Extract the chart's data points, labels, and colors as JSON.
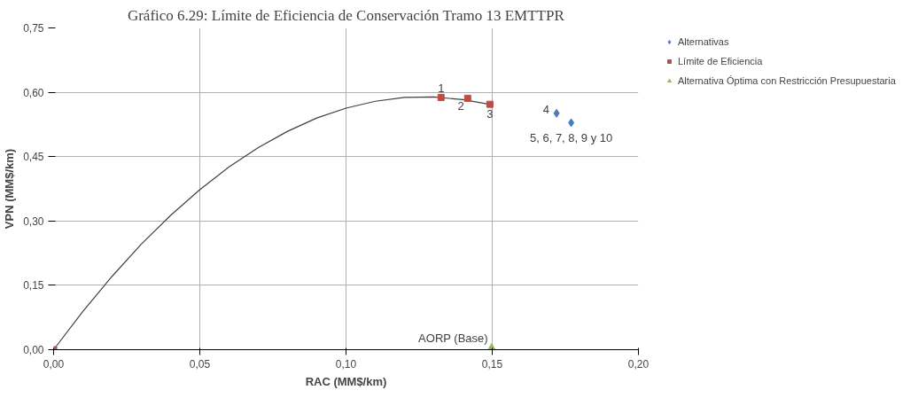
{
  "chart_data": {
    "type": "scatter",
    "title": "Gráfico 6.29: Límite de Eficiencia de Conservación Tramo 13 EMTTPR",
    "xlabel": "RAC (MM$/km)",
    "ylabel": "VPN (MM$/km)",
    "xlim": [
      0,
      0.2
    ],
    "ylim": [
      0,
      0.75
    ],
    "xticks": [
      {
        "value": 0,
        "label": "0,00"
      },
      {
        "value": 0.05,
        "label": "0,05"
      },
      {
        "value": 0.1,
        "label": "0,10"
      },
      {
        "value": 0.15,
        "label": "0,15"
      },
      {
        "value": 0.2,
        "label": "0,20"
      }
    ],
    "yticks": [
      {
        "value": 0,
        "label": "0,00"
      },
      {
        "value": 0.15,
        "label": "0,15"
      },
      {
        "value": 0.3,
        "label": "0,30"
      },
      {
        "value": 0.45,
        "label": "0,45"
      },
      {
        "value": 0.6,
        "label": "0,60"
      },
      {
        "value": 0.75,
        "label": "0,75"
      }
    ],
    "grid": true,
    "legend": "right",
    "series": [
      {
        "type": "line",
        "color": "#404040",
        "marker": "none",
        "x": [
          0,
          0.01,
          0.02,
          0.03,
          0.04,
          0.05,
          0.06,
          0.07,
          0.08,
          0.09,
          0.1,
          0.11,
          0.12,
          0.13,
          0.14,
          0.149
        ],
        "values": [
          0,
          0.089,
          0.171,
          0.246,
          0.313,
          0.373,
          0.426,
          0.471,
          0.509,
          0.54,
          0.563,
          0.579,
          0.588,
          0.589,
          0.583,
          0.572
        ]
      },
      {
        "name": "Alternativas",
        "color": "#4a7ebb",
        "marker": "diamond",
        "x": [
          0.172,
          0.177
        ],
        "values": [
          0.551,
          0.529
        ]
      },
      {
        "name": "Límite de Eficiencia",
        "color": "#be4b48",
        "marker": "square",
        "x": [
          0,
          0.1325,
          0.1416,
          0.1492
        ],
        "values": [
          0,
          0.588,
          0.586,
          0.572
        ]
      },
      {
        "name": "Alternativa Óptima con Restricción Presupuestaria",
        "color": "#98b954",
        "marker": "triangle",
        "x": [
          0.1498
        ],
        "values": [
          0
        ]
      }
    ],
    "annotations": [
      {
        "text": "1",
        "x": 0.1325,
        "y": 0.588
      },
      {
        "text": "2",
        "x": 0.1416,
        "y": 0.586
      },
      {
        "text": "3",
        "x": 0.1492,
        "y": 0.572
      },
      {
        "text": "4",
        "x": 0.172,
        "y": 0.551
      },
      {
        "text": "5, 6, 7, 8, 9 y 10",
        "x": 0.177,
        "y": 0.529
      },
      {
        "text": "AORP (Base)",
        "x": 0.1498,
        "y": 0
      }
    ]
  }
}
